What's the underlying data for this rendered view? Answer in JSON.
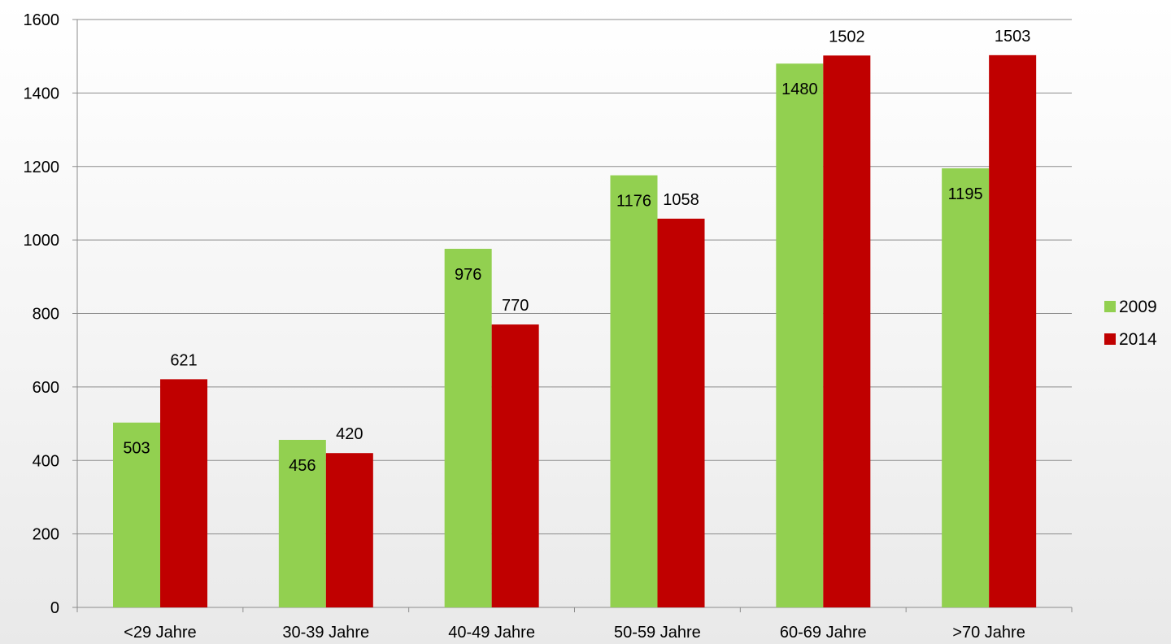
{
  "chart_data": {
    "type": "bar",
    "categories": [
      "<29 Jahre",
      "30-39 Jahre",
      "40-49 Jahre",
      "50-59 Jahre",
      "60-69 Jahre",
      ">70 Jahre"
    ],
    "series": [
      {
        "name": "2009",
        "color": "#92d050",
        "values": [
          503,
          456,
          976,
          1176,
          1480,
          1195
        ]
      },
      {
        "name": "2014",
        "color": "#c00000",
        "values": [
          621,
          420,
          770,
          1058,
          1502,
          1503
        ]
      }
    ],
    "ylim": [
      0,
      1600
    ],
    "yticks": [
      0,
      200,
      400,
      600,
      800,
      1000,
      1200,
      1400,
      1600
    ],
    "grid": true,
    "legend": "right",
    "data_labels": true
  }
}
